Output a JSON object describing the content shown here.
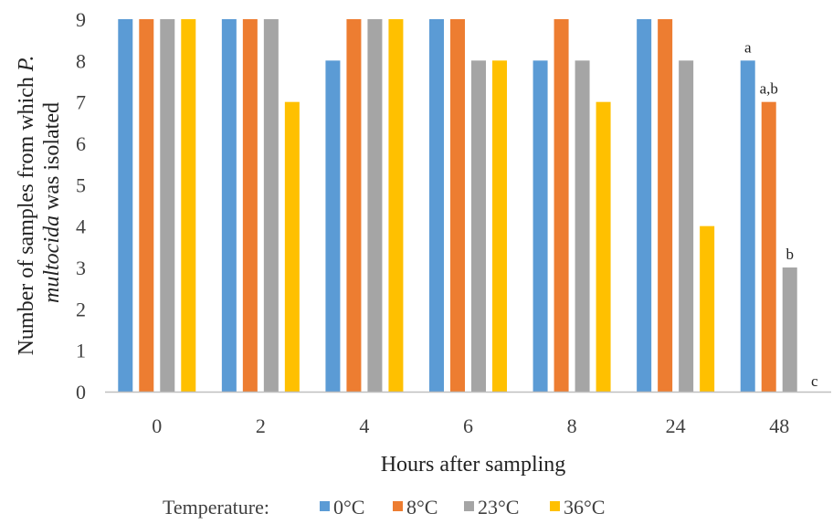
{
  "chart_data": {
    "type": "bar",
    "categories": [
      "0",
      "2",
      "4",
      "6",
      "8",
      "24",
      "48"
    ],
    "series": [
      {
        "name": "0°C",
        "color": "#5b9bd5",
        "values": [
          9,
          9,
          8,
          9,
          8,
          9,
          8
        ]
      },
      {
        "name": "8°C",
        "color": "#ed7d31",
        "values": [
          9,
          9,
          9,
          9,
          9,
          9,
          7
        ]
      },
      {
        "name": "23°C",
        "color": "#a5a5a5",
        "values": [
          9,
          9,
          9,
          8,
          8,
          8,
          3
        ]
      },
      {
        "name": "36°C",
        "color": "#ffc000",
        "values": [
          9,
          7,
          9,
          8,
          7,
          4,
          0
        ]
      }
    ],
    "xlabel": "Hours after sampling",
    "ylabel_line1_prefix": "Number of samples from which ",
    "ylabel_line1_italic": "P.",
    "ylabel_line2_italic": "multocida",
    "ylabel_line2_suffix": " was isolated",
    "ylim": [
      0,
      9
    ],
    "yticks": [
      "0",
      "1",
      "2",
      "3",
      "4",
      "5",
      "6",
      "7",
      "8",
      "9"
    ],
    "legend_title": "Temperature:",
    "legend_position": "bottom",
    "grid": false,
    "annotations": [
      {
        "category": "48",
        "series": 0,
        "text": "a"
      },
      {
        "category": "48",
        "series": 1,
        "text": "a,b"
      },
      {
        "category": "48",
        "series": 2,
        "text": "b"
      },
      {
        "category": "48",
        "series": 3,
        "text": "c"
      }
    ]
  }
}
